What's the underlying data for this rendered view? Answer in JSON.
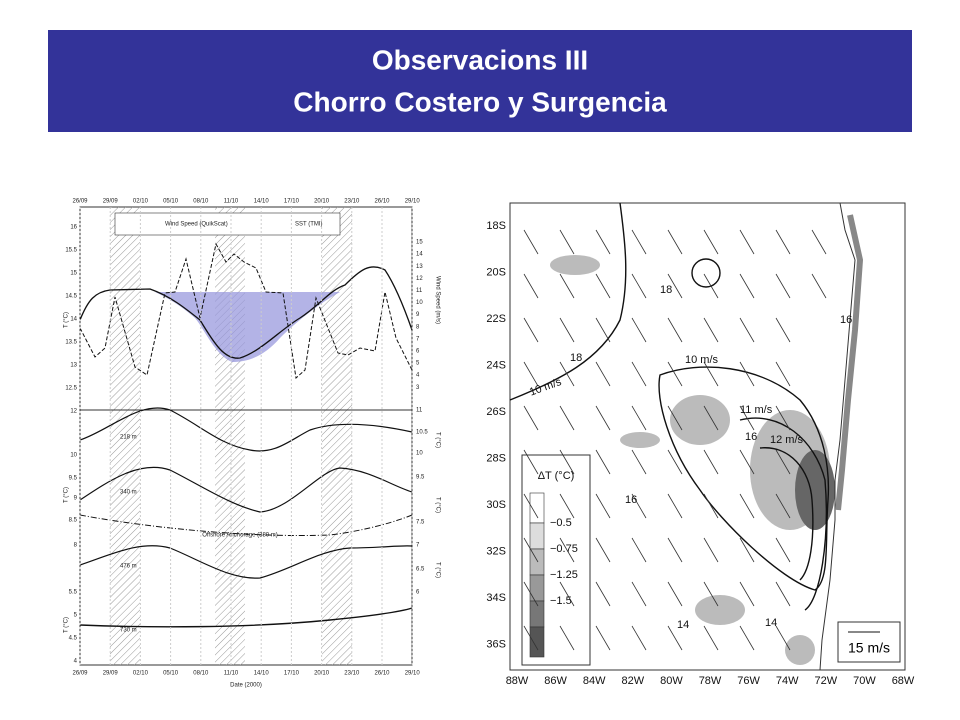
{
  "slide": {
    "title_lines": [
      "Observacions III",
      "Chorro Costero y Surgencia"
    ]
  },
  "left_figure": {
    "dates": [
      "26/09",
      "29/09",
      "02/10",
      "05/10",
      "08/10",
      "11/10",
      "14/10",
      "17/10",
      "20/10",
      "23/10",
      "26/10",
      "29/10"
    ],
    "x_label": "Date (2000)",
    "legend": [
      "Wind Speed (QuikScat)",
      "SST (TMI)"
    ],
    "y_labels": [
      "T (°C)",
      "Wind Speed (m/s)"
    ],
    "top_left_ticks": [
      "16",
      "15.5",
      "15",
      "14.5",
      "14",
      "13.5",
      "13",
      "12.5",
      "12"
    ],
    "top_right_ticks": [
      "15",
      "14",
      "13",
      "12",
      "11",
      "10",
      "9",
      "8",
      "7",
      "6",
      "5",
      "4",
      "3"
    ],
    "mid_left_ticks": [
      "10",
      "9.5",
      "9",
      "8.5",
      "8"
    ],
    "mid_right_ticks": [
      "11",
      "10.5",
      "10",
      "9.5",
      "7.5",
      "7",
      "6.5",
      "6"
    ],
    "bottom_left_ticks": [
      "5.5",
      "5",
      "4.5",
      "4"
    ],
    "panel_labels": [
      "218 m",
      "340 m",
      "Offshore Anchorage (380 m)",
      "476 m",
      "730 m"
    ]
  },
  "right_figure": {
    "latitudes": [
      "18S",
      "20S",
      "22S",
      "24S",
      "26S",
      "28S",
      "30S",
      "32S",
      "34S",
      "36S"
    ],
    "longitudes": [
      "88W",
      "86W",
      "84W",
      "82W",
      "80W",
      "78W",
      "76W",
      "74W",
      "72W",
      "70W",
      "68W"
    ],
    "legend_title": "ΔT (°C)",
    "legend_levels": [
      "−0.5",
      "−0.75",
      "−1.25",
      "−1.5"
    ],
    "wind_labels": [
      "10 m/s",
      "10 m/s",
      "11 m/s",
      "12 m/s"
    ],
    "sst_labels": [
      "18",
      "18",
      "16",
      "16",
      "16",
      "14",
      "14"
    ],
    "scale_label": "15 m/s"
  }
}
